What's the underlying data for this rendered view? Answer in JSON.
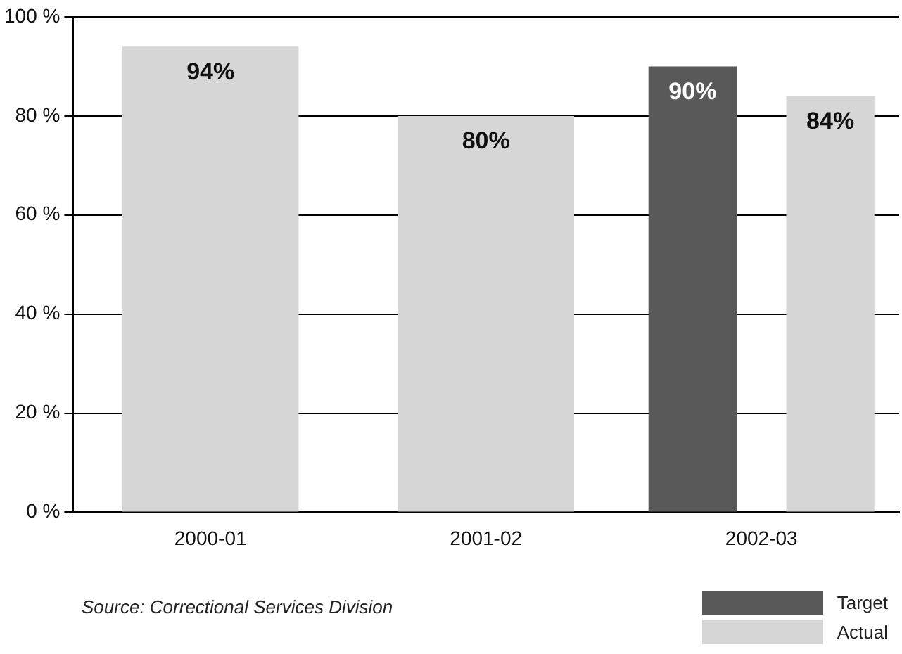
{
  "chart_data": {
    "type": "bar",
    "categories": [
      "2000-01",
      "2001-02",
      "2002-03"
    ],
    "series": [
      {
        "name": "Target",
        "color": "#595959",
        "values": [
          null,
          null,
          90
        ],
        "value_labels": [
          null,
          null,
          "90%"
        ]
      },
      {
        "name": "Actual",
        "color": "#d6d6d6",
        "values": [
          94,
          80,
          84
        ],
        "value_labels": [
          "94%",
          "80%",
          "84%"
        ]
      }
    ],
    "ylim": [
      0,
      100
    ],
    "yticks": [
      {
        "value": 0,
        "label": "0 %"
      },
      {
        "value": 20,
        "label": "20 %"
      },
      {
        "value": 40,
        "label": "40 %"
      },
      {
        "value": 60,
        "label": "60 %"
      },
      {
        "value": 80,
        "label": "80 %"
      },
      {
        "value": 100,
        "label": "100 %"
      }
    ],
    "grid": "y",
    "legend": "bottom right",
    "annotations": [
      "Source:  Correctional Services Division"
    ]
  }
}
